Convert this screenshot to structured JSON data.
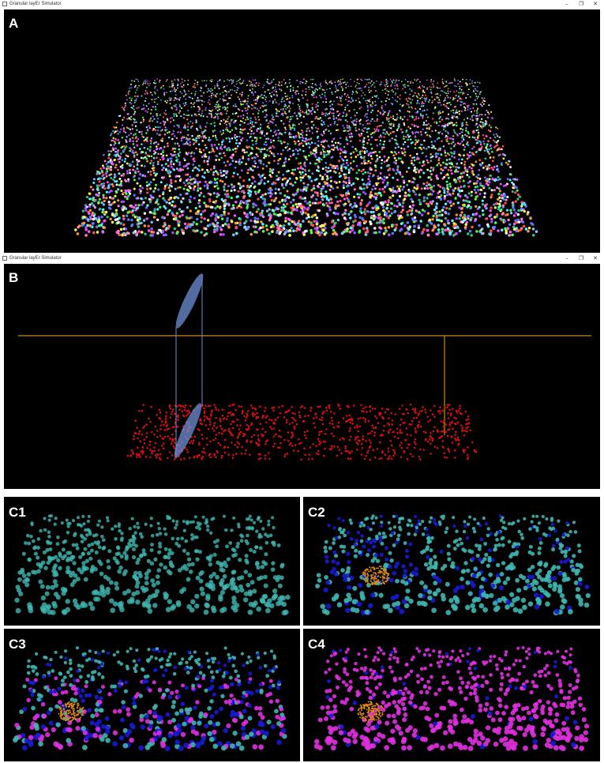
{
  "window_a": {
    "title": "Granular layEr Simulator",
    "controls": {
      "minimize": "–",
      "restore": "❐",
      "close": "✕"
    },
    "panel_label": "A"
  },
  "window_b": {
    "title": "Granular layEr Simulator",
    "controls": {
      "minimize": "–",
      "restore": "❐",
      "close": "✕"
    },
    "panel_label": "B"
  },
  "panels_c": [
    {
      "label": "C1"
    },
    {
      "label": "C2"
    },
    {
      "label": "C3"
    },
    {
      "label": "C4"
    }
  ],
  "colors": {
    "background": "#000000",
    "cell_teal": "#3fb6b0",
    "cell_blue": "#1a1ad0",
    "cell_magenta": "#e030e0",
    "cell_red": "#d01010",
    "cluster_orange": "#e08a10",
    "axon_gold": "#c8901a",
    "dendrite_blue": "#6f8fd6",
    "a_palette": [
      "#ff5050",
      "#50ff50",
      "#5080ff",
      "#ffff50",
      "#ff50ff",
      "#50ffff",
      "#ffffff",
      "#ff9a30",
      "#a050ff",
      "#30c080",
      "#ff80c0",
      "#80c0ff"
    ]
  }
}
